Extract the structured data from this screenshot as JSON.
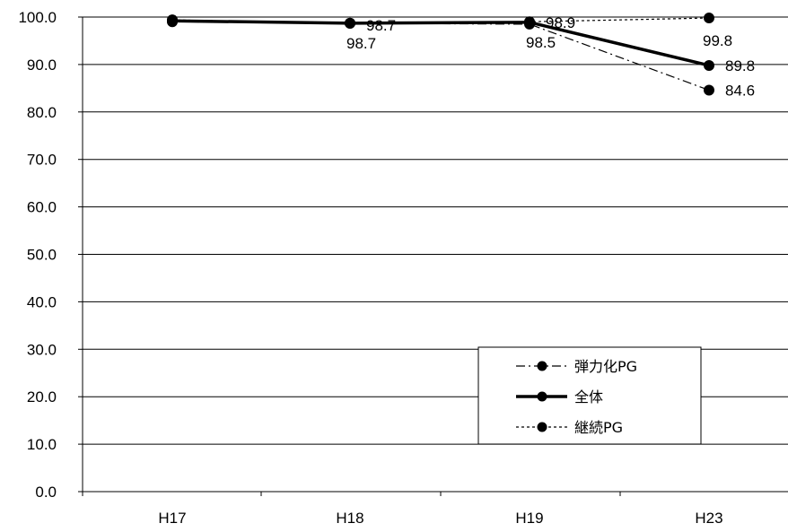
{
  "chart_data": {
    "type": "line",
    "categories": [
      "H17",
      "H18",
      "H19",
      "H23"
    ],
    "ylim": [
      0,
      100
    ],
    "y_ticks": [
      "0.0",
      "10.0",
      "20.0",
      "30.0",
      "40.0",
      "50.0",
      "60.0",
      "70.0",
      "80.0",
      "90.0",
      "100.0"
    ],
    "grid": true,
    "legend_position": "bottom-right",
    "series": [
      {
        "name": "弾力化PG",
        "values": [
          99.0,
          98.7,
          98.5,
          84.6
        ],
        "style": "dash-dot",
        "color": "#000000"
      },
      {
        "name": "全体",
        "values": [
          99.2,
          98.7,
          98.9,
          89.8
        ],
        "style": "solid-thick",
        "color": "#000000"
      },
      {
        "name": "継続PG",
        "values": [
          99.4,
          98.7,
          99.0,
          99.8
        ],
        "style": "dotted",
        "color": "#000000"
      }
    ],
    "data_labels": [
      {
        "category": "H18",
        "value": 98.7,
        "text": "98.7"
      },
      {
        "category": "H18",
        "value": 98.7,
        "text": "98.7"
      },
      {
        "category": "H19",
        "value": 98.9,
        "text": "98.9"
      },
      {
        "category": "H19",
        "value": 98.5,
        "text": "98.5"
      },
      {
        "category": "H23",
        "value": 99.8,
        "text": "99.8"
      },
      {
        "category": "H23",
        "value": 89.8,
        "text": "89.8"
      },
      {
        "category": "H23",
        "value": 84.6,
        "text": "84.6"
      }
    ]
  }
}
